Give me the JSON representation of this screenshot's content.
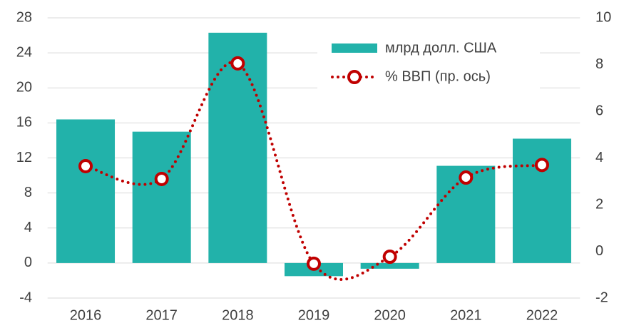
{
  "chart_data": {
    "type": "bar-line",
    "categories": [
      "2016",
      "2017",
      "2018",
      "2019",
      "2020",
      "2021",
      "2022"
    ],
    "series": [
      {
        "name": "млрд долл. США",
        "type": "bar",
        "color": "#22b2aa",
        "values": [
          16.4,
          15.0,
          26.3,
          -1.5,
          -0.65,
          11.1,
          14.2
        ]
      },
      {
        "name": "% ВВП (пр. ось)",
        "type": "line",
        "axis": "y2",
        "color": "#c00000",
        "values": [
          3.65,
          3.1,
          8.05,
          -0.53,
          -0.23,
          3.16,
          3.7
        ]
      }
    ],
    "ylim": [
      -4,
      28
    ],
    "yticks": [
      -4,
      0,
      4,
      8,
      12,
      16,
      20,
      24,
      28
    ],
    "y2lim": [
      -2,
      10
    ],
    "y2ticks": [
      -2,
      0,
      2,
      4,
      6,
      8,
      10
    ],
    "grid": true,
    "legend": "top-right"
  }
}
